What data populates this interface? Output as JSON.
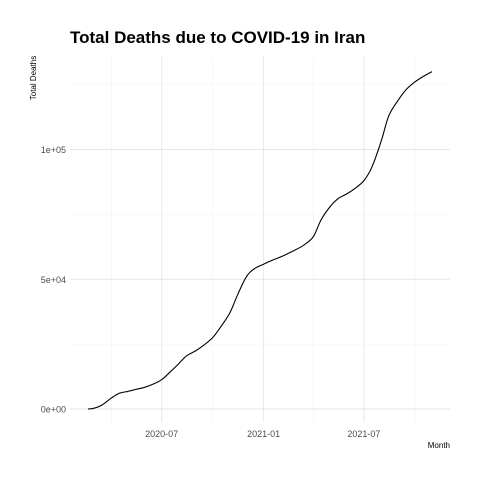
{
  "chart_data": {
    "type": "line",
    "title": "Total Deaths due to COVID-19 in Iran",
    "xlabel": "Month",
    "ylabel": "Total Deaths",
    "x_ticks": [
      "2020-07",
      "2021-01",
      "2021-07"
    ],
    "y_ticks": [
      "0e+00",
      "5e+04",
      "1e+05"
    ],
    "ylim": [
      -5000,
      135000
    ],
    "grid": true,
    "series": [
      {
        "x": [
          "2020-02-19",
          "2020-03-01",
          "2020-03-15",
          "2020-04-01",
          "2020-04-15",
          "2020-05-01",
          "2020-05-15",
          "2020-06-01",
          "2020-06-15",
          "2020-07-01",
          "2020-07-15",
          "2020-08-01",
          "2020-08-15",
          "2020-09-01",
          "2020-09-15",
          "2020-10-01",
          "2020-10-15",
          "2020-11-01",
          "2020-11-15",
          "2020-12-01",
          "2020-12-15",
          "2021-01-01",
          "2021-01-15",
          "2021-02-01",
          "2021-02-15",
          "2021-03-01",
          "2021-03-15",
          "2021-04-01",
          "2021-04-15",
          "2021-05-01",
          "2021-05-15",
          "2021-06-01",
          "2021-06-15",
          "2021-07-01",
          "2021-07-15",
          "2021-08-01",
          "2021-08-15",
          "2021-09-01",
          "2021-09-15",
          "2021-10-01",
          "2021-10-15",
          "2021-11-01"
        ],
        "values": [
          0,
          300,
          1500,
          4200,
          6000,
          6800,
          7500,
          8400,
          9500,
          11300,
          14000,
          17500,
          20500,
          22500,
          24600,
          27500,
          31500,
          37000,
          44000,
          51000,
          54000,
          55800,
          57200,
          58600,
          60000,
          61500,
          63200,
          66500,
          73000,
          78000,
          81000,
          83000,
          85000,
          88000,
          93000,
          103000,
          113000,
          119000,
          123000,
          126000,
          128000,
          130000
        ]
      }
    ]
  }
}
